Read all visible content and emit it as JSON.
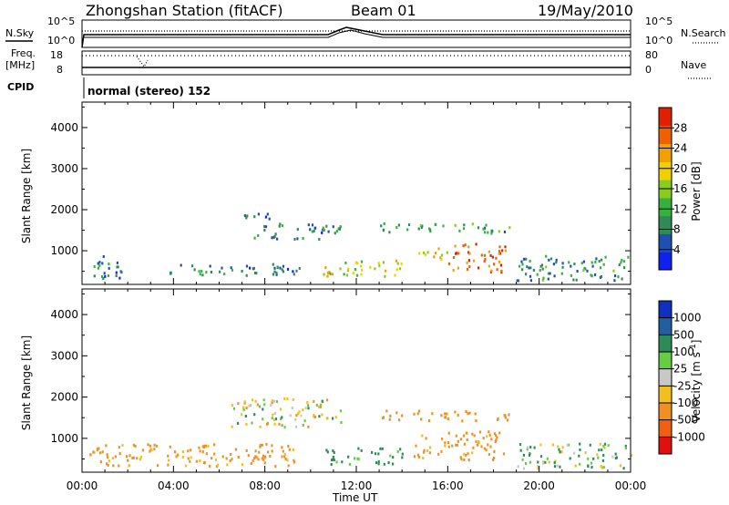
{
  "header": {
    "station": "Zhongshan Station (fitACF)",
    "beam": "Beam 01",
    "date": "19/May/2010"
  },
  "top_panels": {
    "nsky_label": "N.Sky",
    "nsky_ticks": [
      "10^5",
      "10^0"
    ],
    "nsearch_label": "N.Search",
    "nsearch_ticks": [
      "10^5",
      "10^0"
    ],
    "freq_label": "Freq.",
    "freq_unit": "[MHz]",
    "freq_ticks": [
      "18",
      "8"
    ],
    "nave_label": "Nave",
    "nave_ticks": [
      "80",
      "0"
    ],
    "cpid_label": "CPID",
    "cpid_text": "normal (stereo) 152"
  },
  "chart_data": [
    {
      "type": "heatmap",
      "panel": "power",
      "title": "",
      "xlabel": "",
      "ylabel": "Slant Range [km]",
      "x_ticks": [
        "00:00",
        "04:00",
        "08:00",
        "12:00",
        "16:00",
        "20:00",
        "00:00"
      ],
      "xlim_hours": [
        0,
        24
      ],
      "y_ticks": [
        "1000",
        "2000",
        "3000",
        "4000"
      ],
      "ylim": [
        180,
        4620
      ],
      "colorbar": {
        "label": "Power [dB]",
        "ticks": [
          "4",
          "8",
          "12",
          "16",
          "20",
          "24",
          "28"
        ],
        "range": [
          0,
          32
        ],
        "colors": [
          "#1020f0",
          "#1f4fb0",
          "#2e8b57",
          "#38b040",
          "#88cc22",
          "#f0d000",
          "#f0a000",
          "#f06000",
          "#e02000"
        ]
      },
      "echo_regions": [
        {
          "t": [
            3.8,
            9.5
          ],
          "r": [
            400,
            700
          ],
          "v": 8
        },
        {
          "t": [
            0.3,
            2.0
          ],
          "r": [
            350,
            900
          ],
          "v": 7
        },
        {
          "t": [
            6.5,
            8.2
          ],
          "r": [
            1800,
            2000
          ],
          "v": 6
        },
        {
          "t": [
            7.5,
            11.3
          ],
          "r": [
            1300,
            1700
          ],
          "v": 8
        },
        {
          "t": [
            10.5,
            14.0
          ],
          "r": [
            400,
            800
          ],
          "v": 18
        },
        {
          "t": [
            13.0,
            18.8
          ],
          "r": [
            1450,
            1700
          ],
          "v": 12
        },
        {
          "t": [
            16.0,
            18.5
          ],
          "r": [
            500,
            1200
          ],
          "v": 26
        },
        {
          "t": [
            19.0,
            24.0
          ],
          "r": [
            300,
            900
          ],
          "v": 10
        },
        {
          "t": [
            14.5,
            16.0
          ],
          "r": [
            800,
            1100
          ],
          "v": 20
        }
      ]
    },
    {
      "type": "heatmap",
      "panel": "velocity",
      "title": "",
      "xlabel": "Time UT",
      "ylabel": "Slant Range [km]",
      "x_ticks": [
        "00:00",
        "04:00",
        "08:00",
        "12:00",
        "16:00",
        "20:00",
        "00:00"
      ],
      "xlim_hours": [
        0,
        24
      ],
      "y_ticks": [
        "1000",
        "2000",
        "3000",
        "4000"
      ],
      "ylim": [
        180,
        4620
      ],
      "colorbar": {
        "label": "Velocity [m s",
        "label_sup": "-1",
        "label_end": "]",
        "ticks": [
          "1000",
          "500",
          "100",
          "25",
          "-25",
          "-100",
          "-500",
          "-1000"
        ],
        "colors": [
          "#1030c0",
          "#2060a0",
          "#2e8b57",
          "#66cc44",
          "#c8c8c8",
          "#f0c020",
          "#f09020",
          "#f06010",
          "#e01010"
        ]
      },
      "echo_regions": [
        {
          "t": [
            0.3,
            9.5
          ],
          "r": [
            350,
            900
          ],
          "v": -200
        },
        {
          "t": [
            6.5,
            11.3
          ],
          "r": [
            1300,
            2000
          ],
          "v": 0
        },
        {
          "t": [
            10.5,
            14.0
          ],
          "r": [
            400,
            800
          ],
          "v": 200
        },
        {
          "t": [
            13.0,
            18.8
          ],
          "r": [
            1450,
            1700
          ],
          "v": -300
        },
        {
          "t": [
            14.5,
            18.5
          ],
          "r": [
            500,
            1200
          ],
          "v": -200
        },
        {
          "t": [
            19.0,
            24.0
          ],
          "r": [
            300,
            900
          ],
          "v": 60
        }
      ]
    }
  ]
}
